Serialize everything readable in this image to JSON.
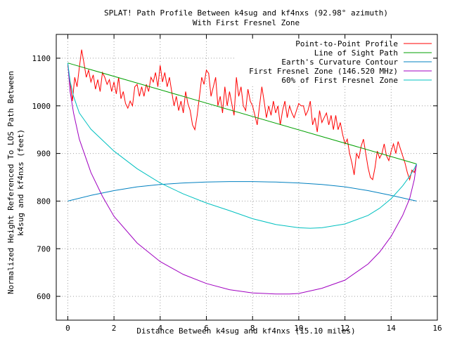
{
  "chart_data": {
    "type": "line",
    "title": "SPLAT! Path Profile Between k4sug and kf4nxs (92.98° azimuth)",
    "subtitle": "With First Fresnel Zone",
    "xlabel": "Distance Between k4sug and kf4nxs (15.10 miles)",
    "ylabel": "Normalized Height Referenced To LOS Path Between",
    "ylabel2": "k4sug and kf4nxs (feet)",
    "xlim": [
      -0.5,
      16
    ],
    "ylim": [
      550,
      1150
    ],
    "xticks": [
      0,
      2,
      4,
      6,
      8,
      10,
      12,
      14,
      16
    ],
    "yticks": [
      600,
      700,
      800,
      900,
      1000,
      1100
    ],
    "grid": true,
    "legend_position": "top-right",
    "series": [
      {
        "name": "Point-to-Point Profile",
        "color": "#ff0000",
        "x": [
          0,
          0.1,
          0.2,
          0.3,
          0.4,
          0.5,
          0.6,
          0.7,
          0.8,
          0.9,
          1.0,
          1.1,
          1.2,
          1.3,
          1.4,
          1.5,
          1.6,
          1.7,
          1.8,
          1.9,
          2.0,
          2.1,
          2.2,
          2.3,
          2.4,
          2.5,
          2.6,
          2.7,
          2.8,
          2.9,
          3.0,
          3.1,
          3.2,
          3.3,
          3.4,
          3.5,
          3.6,
          3.7,
          3.8,
          3.9,
          4.0,
          4.1,
          4.2,
          4.3,
          4.4,
          4.5,
          4.6,
          4.7,
          4.8,
          4.9,
          5.0,
          5.1,
          5.2,
          5.3,
          5.4,
          5.5,
          5.6,
          5.7,
          5.8,
          5.9,
          6.0,
          6.1,
          6.2,
          6.3,
          6.4,
          6.5,
          6.6,
          6.7,
          6.8,
          6.9,
          7.0,
          7.1,
          7.2,
          7.3,
          7.4,
          7.5,
          7.6,
          7.7,
          7.8,
          7.9,
          8.0,
          8.1,
          8.2,
          8.3,
          8.4,
          8.5,
          8.6,
          8.7,
          8.8,
          8.9,
          9.0,
          9.1,
          9.2,
          9.3,
          9.4,
          9.5,
          9.6,
          9.7,
          9.8,
          9.9,
          10.0,
          10.1,
          10.2,
          10.3,
          10.4,
          10.5,
          10.6,
          10.7,
          10.8,
          10.9,
          11.0,
          11.1,
          11.2,
          11.3,
          11.4,
          11.5,
          11.6,
          11.7,
          11.8,
          11.9,
          12.0,
          12.1,
          12.2,
          12.3,
          12.4,
          12.5,
          12.6,
          12.7,
          12.8,
          12.9,
          13.0,
          13.1,
          13.2,
          13.3,
          13.4,
          13.5,
          13.6,
          13.7,
          13.8,
          13.9,
          14.0,
          14.1,
          14.2,
          14.3,
          14.4,
          14.5,
          14.6,
          14.7,
          14.8,
          14.9,
          15.0,
          15.1
        ],
        "y": [
          1085,
          1050,
          1010,
          1060,
          1040,
          1080,
          1118,
          1090,
          1060,
          1075,
          1050,
          1065,
          1035,
          1055,
          1030,
          1070,
          1060,
          1045,
          1055,
          1030,
          1050,
          1025,
          1060,
          1015,
          1030,
          1005,
          995,
          1010,
          1000,
          1040,
          1045,
          1020,
          1040,
          1020,
          1045,
          1030,
          1060,
          1050,
          1070,
          1040,
          1085,
          1050,
          1070,
          1040,
          1060,
          1030,
          1000,
          1020,
          990,
          1010,
          985,
          1030,
          1005,
          990,
          960,
          950,
          980,
          1020,
          1060,
          1045,
          1075,
          1068,
          1020,
          1040,
          1060,
          1000,
          1020,
          985,
          1040,
          1000,
          1030,
          1005,
          980,
          1060,
          1020,
          1040,
          1000,
          990,
          1035,
          1010,
          1000,
          980,
          960,
          1000,
          1040,
          1010,
          975,
          1000,
          980,
          1010,
          985,
          1000,
          960,
          990,
          1010,
          975,
          1000,
          985,
          975,
          990,
          1005,
          1000,
          1000,
          980,
          990,
          1010,
          960,
          975,
          945,
          990,
          965,
          975,
          985,
          960,
          980,
          950,
          980,
          950,
          965,
          940,
          920,
          930,
          900,
          880,
          855,
          900,
          890,
          915,
          930,
          900,
          870,
          850,
          845,
          870,
          905,
          890,
          900,
          920,
          895,
          885,
          905,
          920,
          900,
          925,
          910,
          895,
          880,
          860,
          845,
          865,
          860,
          875
        ]
      },
      {
        "name": "Line of Sight Path",
        "color": "#00a000",
        "x": [
          0,
          15.1
        ],
        "y": [
          1090,
          878
        ]
      },
      {
        "name": "Earth's Curvature Contour",
        "color": "#0080c0",
        "x": [
          0,
          1,
          2,
          3,
          4,
          5,
          6,
          7,
          7.55,
          8,
          9,
          10,
          11,
          12,
          13,
          14,
          15.1
        ],
        "y": [
          800,
          812,
          822,
          830,
          835,
          838,
          840,
          841,
          841,
          841,
          840,
          838,
          835,
          830,
          822,
          812,
          800
        ]
      },
      {
        "name": "First Fresnel Zone (146.520 MHz)",
        "color": "#a000c0",
        "x": [
          0,
          0.1,
          0.25,
          0.5,
          1,
          1.5,
          2,
          3,
          4,
          5,
          6,
          7,
          8,
          9,
          9.6,
          10,
          11,
          12,
          13,
          13.5,
          14,
          14.5,
          14.8,
          15,
          15.1
        ],
        "y": [
          1090,
          1030,
          985,
          930,
          860,
          810,
          768,
          712,
          673,
          646,
          627,
          614,
          607,
          605,
          605,
          606,
          617,
          634,
          668,
          693,
          726,
          770,
          805,
          845,
          878
        ]
      },
      {
        "name": "60% of First Fresnel Zone",
        "color": "#00c0c0",
        "x": [
          0,
          0.1,
          0.25,
          0.5,
          1,
          2,
          3,
          4,
          5,
          6,
          7,
          8,
          9,
          10,
          10.5,
          11,
          12,
          13,
          13.5,
          14,
          14.5,
          14.8,
          15,
          15.1
        ],
        "y": [
          1090,
          1052,
          1020,
          985,
          951,
          905,
          868,
          838,
          815,
          796,
          780,
          763,
          751,
          744,
          743,
          744,
          752,
          770,
          785,
          805,
          832,
          852,
          868,
          878
        ]
      }
    ]
  }
}
